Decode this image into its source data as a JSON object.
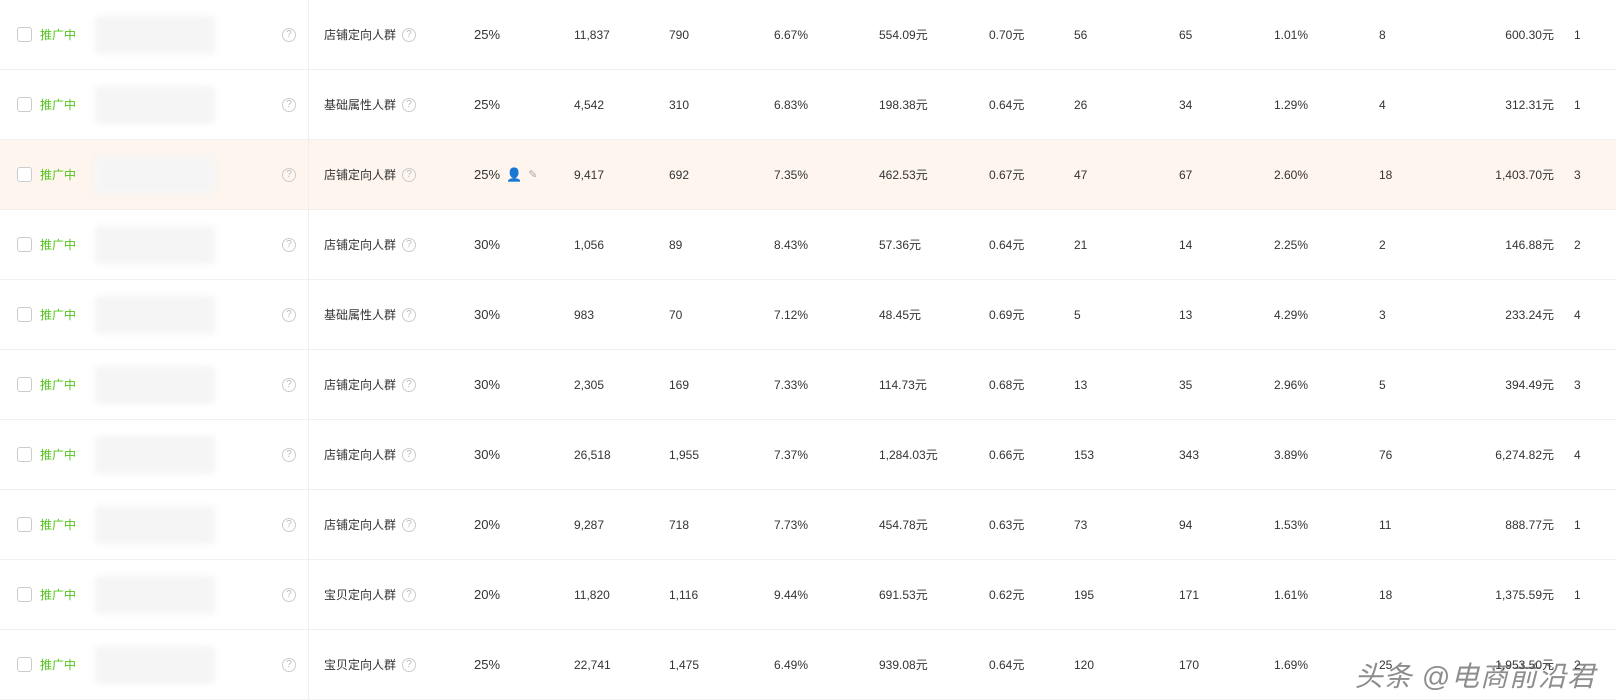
{
  "colors": {
    "status_text": "#52c41a",
    "highlight_bg": "#fdf5ee",
    "border": "#f0f0f0",
    "text_primary": "#333",
    "text_secondary": "#666",
    "help_icon": "#bbb",
    "person_icon": "#f60"
  },
  "status_label": "推广中",
  "watermark": "头条 @电商前沿君",
  "rows": [
    {
      "target": "店铺定向人群",
      "premium": "25%",
      "show_edit": false,
      "v1": "11,837",
      "v2": "790",
      "v3": "6.67%",
      "v4": "554.09元",
      "v5": "0.70元",
      "v6": "56",
      "v7": "65",
      "v8": "1.01%",
      "v9": "8",
      "v10": "600.30元",
      "v11": "1",
      "highlight": false
    },
    {
      "target": "基础属性人群",
      "premium": "25%",
      "show_edit": false,
      "v1": "4,542",
      "v2": "310",
      "v3": "6.83%",
      "v4": "198.38元",
      "v5": "0.64元",
      "v6": "26",
      "v7": "34",
      "v8": "1.29%",
      "v9": "4",
      "v10": "312.31元",
      "v11": "1",
      "highlight": false
    },
    {
      "target": "店铺定向人群",
      "premium": "25%",
      "show_edit": true,
      "v1": "9,417",
      "v2": "692",
      "v3": "7.35%",
      "v4": "462.53元",
      "v5": "0.67元",
      "v6": "47",
      "v7": "67",
      "v8": "2.60%",
      "v9": "18",
      "v10": "1,403.70元",
      "v11": "3",
      "highlight": true
    },
    {
      "target": "店铺定向人群",
      "premium": "30%",
      "show_edit": false,
      "v1": "1,056",
      "v2": "89",
      "v3": "8.43%",
      "v4": "57.36元",
      "v5": "0.64元",
      "v6": "21",
      "v7": "14",
      "v8": "2.25%",
      "v9": "2",
      "v10": "146.88元",
      "v11": "2",
      "highlight": false
    },
    {
      "target": "基础属性人群",
      "premium": "30%",
      "show_edit": false,
      "v1": "983",
      "v2": "70",
      "v3": "7.12%",
      "v4": "48.45元",
      "v5": "0.69元",
      "v6": "5",
      "v7": "13",
      "v8": "4.29%",
      "v9": "3",
      "v10": "233.24元",
      "v11": "4",
      "highlight": false
    },
    {
      "target": "店铺定向人群",
      "premium": "30%",
      "show_edit": false,
      "v1": "2,305",
      "v2": "169",
      "v3": "7.33%",
      "v4": "114.73元",
      "v5": "0.68元",
      "v6": "13",
      "v7": "35",
      "v8": "2.96%",
      "v9": "5",
      "v10": "394.49元",
      "v11": "3",
      "highlight": false
    },
    {
      "target": "店铺定向人群",
      "premium": "30%",
      "show_edit": false,
      "v1": "26,518",
      "v2": "1,955",
      "v3": "7.37%",
      "v4": "1,284.03元",
      "v5": "0.66元",
      "v6": "153",
      "v7": "343",
      "v8": "3.89%",
      "v9": "76",
      "v10": "6,274.82元",
      "v11": "4",
      "highlight": false
    },
    {
      "target": "店铺定向人群",
      "premium": "20%",
      "show_edit": false,
      "v1": "9,287",
      "v2": "718",
      "v3": "7.73%",
      "v4": "454.78元",
      "v5": "0.63元",
      "v6": "73",
      "v7": "94",
      "v8": "1.53%",
      "v9": "11",
      "v10": "888.77元",
      "v11": "1",
      "highlight": false
    },
    {
      "target": "宝贝定向人群",
      "premium": "20%",
      "show_edit": false,
      "v1": "11,820",
      "v2": "1,116",
      "v3": "9.44%",
      "v4": "691.53元",
      "v5": "0.62元",
      "v6": "195",
      "v7": "171",
      "v8": "1.61%",
      "v9": "18",
      "v10": "1,375.59元",
      "v11": "1",
      "highlight": false
    },
    {
      "target": "宝贝定向人群",
      "premium": "25%",
      "show_edit": false,
      "v1": "22,741",
      "v2": "1,475",
      "v3": "6.49%",
      "v4": "939.08元",
      "v5": "0.64元",
      "v6": "120",
      "v7": "170",
      "v8": "1.69%",
      "v9": "25",
      "v10": "1,953.50元",
      "v11": "2",
      "highlight": false
    }
  ]
}
